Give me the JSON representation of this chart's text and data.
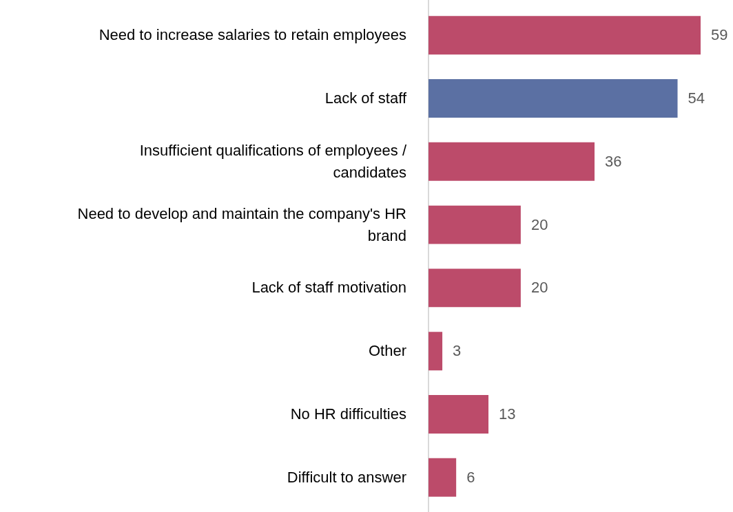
{
  "chart_data": {
    "type": "bar",
    "orientation": "horizontal",
    "categories": [
      "Need to increase salaries to retain employees",
      "Lack of staff",
      "Insufficient qualifications of employees / candidates",
      "Need to develop and maintain the company's HR brand",
      "Lack of staff motivation",
      "Other",
      "No HR difficulties",
      "Difficult to answer"
    ],
    "values": [
      59,
      54,
      36,
      20,
      20,
      3,
      13,
      6
    ],
    "colors": [
      "#bc4b6a",
      "#5b70a3",
      "#bc4b6a",
      "#bc4b6a",
      "#bc4b6a",
      "#bc4b6a",
      "#bc4b6a",
      "#bc4b6a"
    ],
    "data_labels": true
  }
}
